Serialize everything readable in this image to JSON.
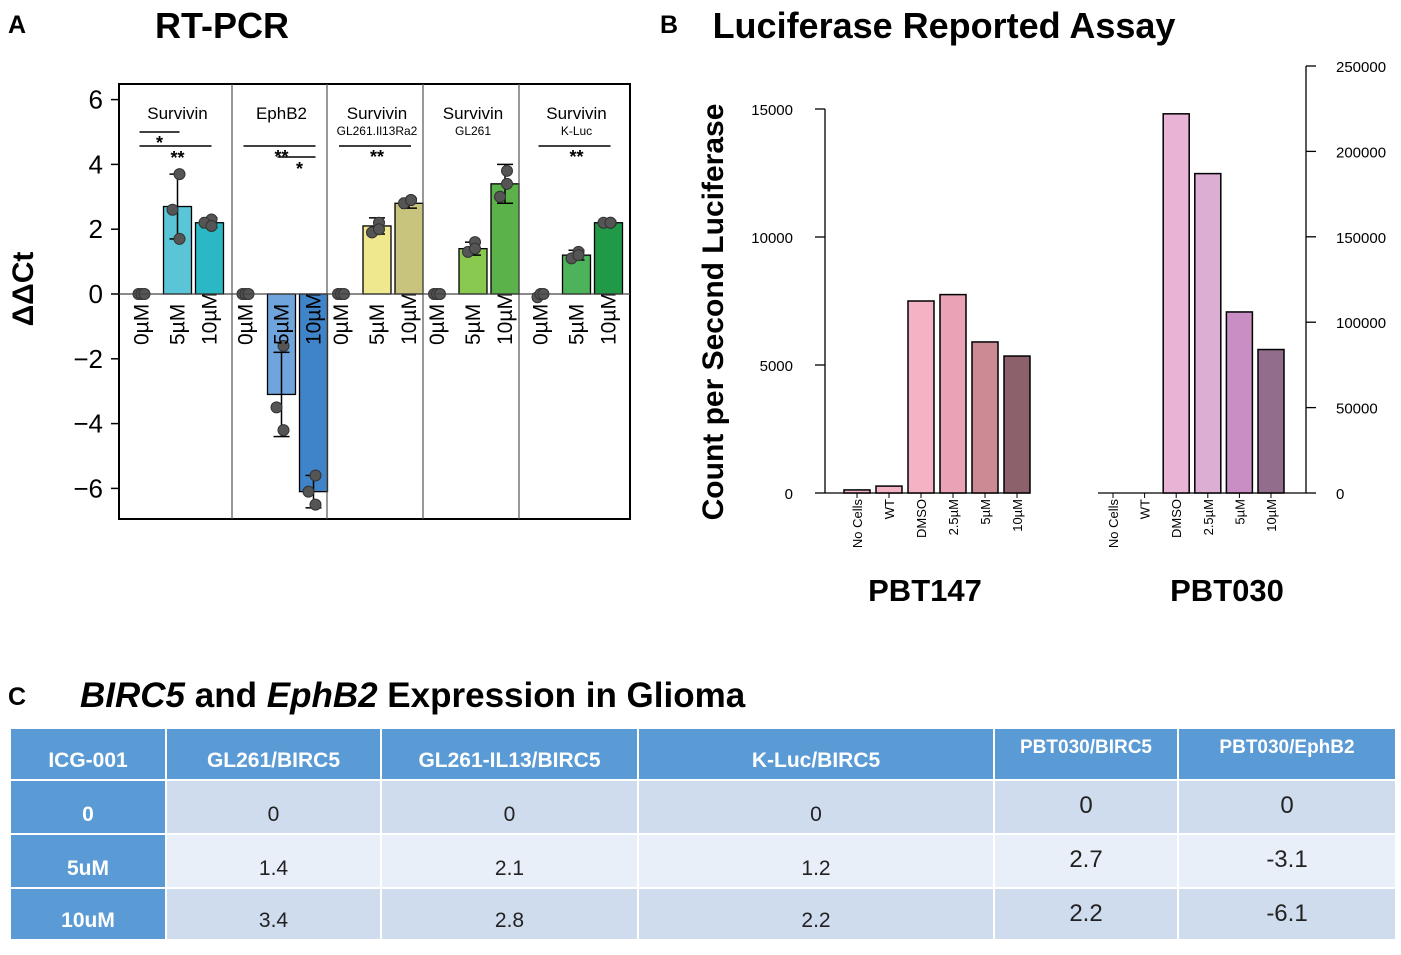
{
  "panels": {
    "a": {
      "letter": "A",
      "title": "RT-PCR",
      "y_label": "ΔΔCt",
      "y_ticks": [
        "6",
        "4",
        "2",
        "0",
        "−2",
        "−4",
        "−6"
      ]
    },
    "b": {
      "letter": "B",
      "title": "Luciferase Reported Assay",
      "y_label": "Count per Second Luciferase",
      "left_ticks": [
        "15000",
        "10000",
        "5000",
        "0"
      ],
      "right_ticks": [
        "250000",
        "200000",
        "150000",
        "100000",
        "50000",
        "0"
      ],
      "categories": [
        "No Cells",
        "WT",
        "DMSO",
        "2.5µM",
        "5µM",
        "10µM"
      ],
      "group_labels": [
        "PBT147",
        "PBT030"
      ]
    },
    "c": {
      "letter": "C",
      "title_italic_1": "BIRC5",
      "title_plain_1": " and ",
      "title_italic_2": "EphB2",
      "title_plain_2": " Expression in Glioma"
    }
  },
  "colors": {
    "survivin": [
      "#59c5d6",
      "#2ab9c4"
    ],
    "ephb2": [
      "#6fa4dc",
      "#3f84c8"
    ],
    "il13": [
      "#efe88e",
      "#c8c47e"
    ],
    "gl261": [
      "#8ac94f",
      "#5cb24a"
    ],
    "kluc": [
      "#4cb35a",
      "#219a48"
    ],
    "pbt147": [
      "#f4b3c4",
      "#e9a2b6",
      "#cb8b95",
      "#8c616b"
    ],
    "pbt030": [
      "#e8b3d4",
      "#dcaed4",
      "#c98fc4",
      "#926d8c"
    ],
    "table_header": "#5b9bd5",
    "table_row_1": "#cfdcee",
    "table_row_2": "#e9eff8"
  },
  "chart_data": [
    {
      "type": "bar",
      "title": "RT-PCR",
      "ylabel": "ΔΔCt",
      "ylim": [
        -7,
        6.6
      ],
      "groups": [
        {
          "label": "Survivin",
          "sublabel": "",
          "categories": [
            "0µM",
            "5µM",
            "10µM"
          ],
          "values": [
            0,
            2.7,
            2.2
          ],
          "errors": [
            0,
            1.0,
            0.15
          ],
          "points": [
            [
              0,
              0,
              0
            ],
            [
              3.7,
              2.6,
              1.7
            ],
            [
              2.3,
              2.2,
              2.1
            ]
          ],
          "significance": [
            "*",
            "**"
          ]
        },
        {
          "label": "EphB2",
          "sublabel": "",
          "categories": [
            "0µM",
            "5µM",
            "10µM"
          ],
          "values": [
            0,
            -3.1,
            -6.1
          ],
          "errors": [
            0,
            1.3,
            0.5
          ],
          "points": [
            [
              0,
              0,
              0
            ],
            [
              -1.6,
              -3.5,
              -4.2
            ],
            [
              -5.6,
              -6.1,
              -6.5
            ]
          ],
          "significance": [
            "**",
            "*"
          ]
        },
        {
          "label": "Survivin",
          "sublabel": "GL261.Il13Ra2",
          "categories": [
            "0µM",
            "5µM",
            "10µM"
          ],
          "values": [
            0,
            2.1,
            2.8
          ],
          "errors": [
            0,
            0.25,
            0.15
          ],
          "points": [
            [
              0,
              0,
              0
            ],
            [
              2.2,
              1.9,
              2.0
            ],
            [
              2.9,
              2.8,
              2.9
            ]
          ],
          "significance": [
            "**"
          ]
        },
        {
          "label": "Survivin",
          "sublabel": "GL261",
          "categories": [
            "0µM",
            "5µM",
            "10µM"
          ],
          "values": [
            0,
            1.4,
            3.4
          ],
          "errors": [
            0,
            0.2,
            0.6
          ],
          "points": [
            [
              0,
              0,
              0
            ],
            [
              1.6,
              1.3,
              1.4
            ],
            [
              3.8,
              3.0,
              3.4
            ]
          ],
          "significance": []
        },
        {
          "label": "Survivin",
          "sublabel": "K-Luc",
          "categories": [
            "0µM",
            "5µM",
            "10µM"
          ],
          "values": [
            0,
            1.2,
            2.2
          ],
          "errors": [
            0,
            0.15,
            0.05
          ],
          "points": [
            [
              -0.1,
              0,
              0
            ],
            [
              1.3,
              1.1,
              1.2
            ],
            [
              2.2,
              2.2,
              2.2
            ]
          ],
          "significance": [
            "**"
          ]
        }
      ]
    },
    {
      "type": "bar",
      "title": "Luciferase Reported Assay",
      "ylabel": "Count per Second Luciferase",
      "series": [
        {
          "name": "PBT147",
          "axis": "left",
          "ylim": [
            0,
            15000
          ],
          "categories": [
            "No Cells",
            "WT",
            "DMSO",
            "2.5µM",
            "5µM",
            "10µM"
          ],
          "values": [
            120,
            270,
            7500,
            7750,
            5900,
            5350
          ]
        },
        {
          "name": "PBT030",
          "axis": "right",
          "ylim": [
            0,
            250000
          ],
          "categories": [
            "No Cells",
            "WT",
            "DMSO",
            "2.5µM",
            "5µM",
            "10µM"
          ],
          "values": [
            0,
            0,
            222000,
            187000,
            106000,
            84000
          ]
        }
      ]
    },
    {
      "type": "table",
      "title": "BIRC5 and EphB2 Expression in Glioma",
      "columns": [
        "ICG-001",
        "GL261/BIRC5",
        "GL261-IL13/BIRC5",
        "K-Luc/BIRC5",
        "PBT030/BIRC5",
        "PBT030/EphB2"
      ],
      "rows": [
        [
          "0",
          "0",
          "0",
          "0",
          "0",
          "0"
        ],
        [
          "5uM",
          "1.4",
          "2.1",
          "1.2",
          "2.7",
          "-3.1"
        ],
        [
          "10uM",
          "3.4",
          "2.8",
          "2.2",
          "2.2",
          "-6.1"
        ]
      ]
    }
  ]
}
